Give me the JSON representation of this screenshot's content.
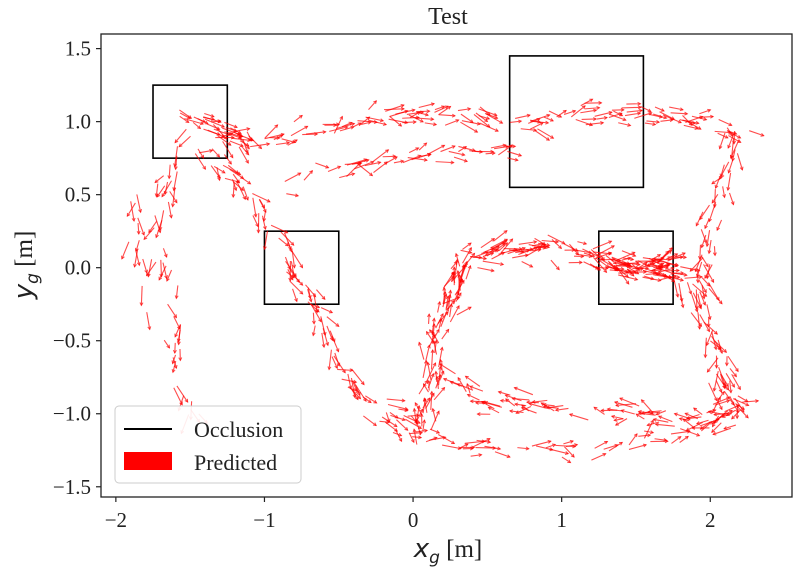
{
  "chart_data": {
    "type": "quiver",
    "title": "Test",
    "xlabel": {
      "symbol": "x",
      "subscript": "g",
      "unit": " [m]"
    },
    "ylabel": {
      "symbol": "y",
      "subscript": "g",
      "unit": " [m]"
    },
    "xlim": [
      -2.1,
      2.55
    ],
    "ylim": [
      -1.57,
      1.6
    ],
    "xticks": [
      -2,
      -1,
      0,
      1,
      2
    ],
    "xtick_labels": [
      "−2",
      "−1",
      "0",
      "1",
      "2"
    ],
    "yticks": [
      -1.5,
      -1.0,
      -0.5,
      0.0,
      0.5,
      1.0,
      1.5
    ],
    "ytick_labels": [
      "−1.5",
      "−1.0",
      "−0.5",
      "0.0",
      "0.5",
      "1.0",
      "1.5"
    ],
    "grid": false,
    "legend": {
      "position": "lower-left",
      "entries": [
        {
          "label": "Occlusion",
          "kind": "line",
          "color": "#000000"
        },
        {
          "label": "Predicted",
          "kind": "patch",
          "color": "#ff0000"
        }
      ]
    },
    "occlusions": [
      {
        "x0": -1.75,
        "y0": 0.75,
        "x1": -1.25,
        "y1": 1.25
      },
      {
        "x0": -1.0,
        "y0": -0.25,
        "x1": -0.5,
        "y1": 0.25
      },
      {
        "x0": 0.65,
        "y0": 0.55,
        "x1": 1.55,
        "y1": 1.45
      },
      {
        "x0": 1.25,
        "y0": -0.25,
        "x1": 1.75,
        "y1": 0.25
      }
    ],
    "trajectories": [
      {
        "points": [
          [
            -1.4,
            0.8
          ],
          [
            -1.05,
            0.45
          ],
          [
            -0.9,
            0.15
          ],
          [
            -0.75,
            -0.1
          ],
          [
            -0.6,
            -0.4
          ],
          [
            -0.45,
            -0.7
          ],
          [
            -0.25,
            -0.95
          ],
          [
            0.0,
            -1.05
          ]
        ],
        "count": 90
      },
      {
        "points": [
          [
            0.05,
            -1.2
          ],
          [
            0.1,
            -0.8
          ],
          [
            0.15,
            -0.45
          ],
          [
            0.25,
            -0.2
          ],
          [
            0.35,
            0.05
          ],
          [
            0.6,
            0.12
          ],
          [
            0.9,
            0.15
          ],
          [
            1.2,
            0.1
          ],
          [
            1.5,
            0.0
          ],
          [
            1.8,
            -0.05
          ]
        ],
        "count": 180
      },
      {
        "points": [
          [
            1.8,
            -0.05
          ],
          [
            1.95,
            -0.3
          ],
          [
            2.05,
            -0.6
          ],
          [
            2.1,
            -0.85
          ],
          [
            2.2,
            -0.95
          ]
        ],
        "count": 50
      },
      {
        "points": [
          [
            2.2,
            -1.0
          ],
          [
            1.9,
            -1.05
          ],
          [
            1.6,
            -1.0
          ],
          [
            1.3,
            -1.0
          ],
          [
            1.0,
            -0.95
          ],
          [
            0.7,
            -0.95
          ],
          [
            0.45,
            -0.9
          ],
          [
            0.3,
            -0.75
          ]
        ],
        "count": 80
      },
      {
        "points": [
          [
            -0.3,
            -1.0
          ],
          [
            0.0,
            -1.15
          ],
          [
            0.3,
            -1.2
          ],
          [
            0.7,
            -1.25
          ],
          [
            1.1,
            -1.25
          ],
          [
            1.5,
            -1.2
          ],
          [
            1.9,
            -1.1
          ],
          [
            2.1,
            -0.95
          ]
        ],
        "count": 60
      },
      {
        "points": [
          [
            -1.0,
            0.85
          ],
          [
            -0.7,
            0.95
          ],
          [
            -0.4,
            1.0
          ],
          [
            -0.1,
            1.05
          ],
          [
            0.2,
            1.05
          ],
          [
            0.5,
            1.0
          ],
          [
            0.8,
            1.0
          ],
          [
            1.1,
            1.05
          ],
          [
            1.4,
            1.05
          ],
          [
            1.7,
            1.05
          ],
          [
            2.0,
            1.0
          ],
          [
            2.2,
            0.9
          ]
        ],
        "count": 120
      },
      {
        "points": [
          [
            2.2,
            0.95
          ],
          [
            2.15,
            0.7
          ],
          [
            2.05,
            0.45
          ],
          [
            2.0,
            0.25
          ],
          [
            1.95,
            0.05
          ],
          [
            2.0,
            -0.2
          ]
        ],
        "count": 40
      },
      {
        "points": [
          [
            -0.9,
            0.6
          ],
          [
            -0.6,
            0.65
          ],
          [
            -0.3,
            0.7
          ],
          [
            0.0,
            0.75
          ],
          [
            0.3,
            0.8
          ],
          [
            0.6,
            0.8
          ]
        ],
        "count": 40
      },
      {
        "points": [
          [
            -1.5,
            0.95
          ],
          [
            -1.65,
            0.55
          ],
          [
            -1.7,
            0.2
          ],
          [
            -1.65,
            -0.2
          ],
          [
            -1.6,
            -0.55
          ],
          [
            -1.55,
            -0.85
          ],
          [
            -1.5,
            -1.05
          ]
        ],
        "count": 45
      },
      {
        "points": [
          [
            -1.9,
            0.6
          ],
          [
            -1.85,
            0.2
          ],
          [
            -1.85,
            -0.3
          ]
        ],
        "count": 12
      },
      {
        "points": [
          [
            -1.55,
            1.05
          ],
          [
            -1.3,
            0.95
          ],
          [
            -1.1,
            0.85
          ]
        ],
        "count": 40
      },
      {
        "points": [
          [
            1.25,
            0.05
          ],
          [
            1.5,
            0.0
          ],
          [
            1.72,
            0.05
          ]
        ],
        "count": 50
      }
    ],
    "series": [
      {
        "name": "Occlusion",
        "color": "#000000"
      },
      {
        "name": "Predicted",
        "color": "#ff0000"
      }
    ]
  }
}
